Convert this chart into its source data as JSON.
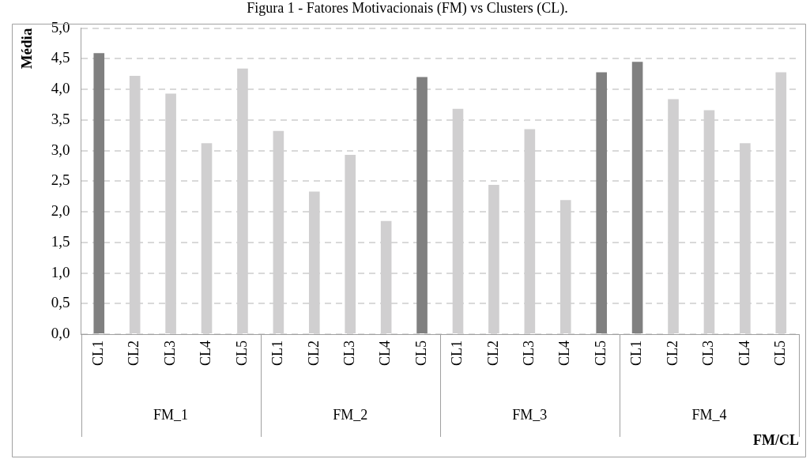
{
  "chart_data": {
    "type": "bar",
    "title": "Figura 1 - Fatores Motivacionais (FM) vs Clusters (CL).",
    "xlabel": "FM/CL",
    "ylabel": "Média",
    "categories": [
      "CL1",
      "CL2",
      "CL3",
      "CL4",
      "CL5",
      "CL1",
      "CL2",
      "CL3",
      "CL4",
      "CL5",
      "CL1",
      "CL2",
      "CL3",
      "CL4",
      "CL5",
      "CL1",
      "CL2",
      "CL3",
      "CL4",
      "CL5"
    ],
    "values": [
      4.59,
      4.22,
      3.93,
      3.12,
      4.34,
      3.32,
      2.33,
      2.93,
      1.85,
      4.2,
      3.68,
      2.44,
      3.35,
      2.19,
      4.28,
      4.45,
      3.84,
      3.66,
      3.12,
      4.28
    ],
    "colors": [
      "#808080",
      "#d0cfd0",
      "#d0cfd0",
      "#d0cfd0",
      "#d0cfd0",
      "#d0cfd0",
      "#d0cfd0",
      "#d0cfd0",
      "#d0cfd0",
      "#808080",
      "#d0cfd0",
      "#d0cfd0",
      "#d0cfd0",
      "#d0cfd0",
      "#808080",
      "#808080",
      "#d0cfd0",
      "#d0cfd0",
      "#d0cfd0",
      "#d0cfd0"
    ],
    "annotations": [
      "FM_1",
      "FM_2",
      "FM_3",
      "FM_4"
    ],
    "ylim": [
      0,
      5
    ],
    "yticks": [
      {
        "value": 0,
        "label": "0,0"
      },
      {
        "value": 0.5,
        "label": "0,5"
      },
      {
        "value": 1,
        "label": "1,0"
      },
      {
        "value": 1.5,
        "label": "1,5"
      },
      {
        "value": 2,
        "label": "2,0"
      },
      {
        "value": 2.5,
        "label": "2,5"
      },
      {
        "value": 3,
        "label": "3,0"
      },
      {
        "value": 3.5,
        "label": "3,5"
      },
      {
        "value": 4,
        "label": "4,0"
      },
      {
        "value": 4.5,
        "label": "4,5"
      },
      {
        "value": 5,
        "label": "5,0"
      }
    ],
    "grid": "y"
  }
}
